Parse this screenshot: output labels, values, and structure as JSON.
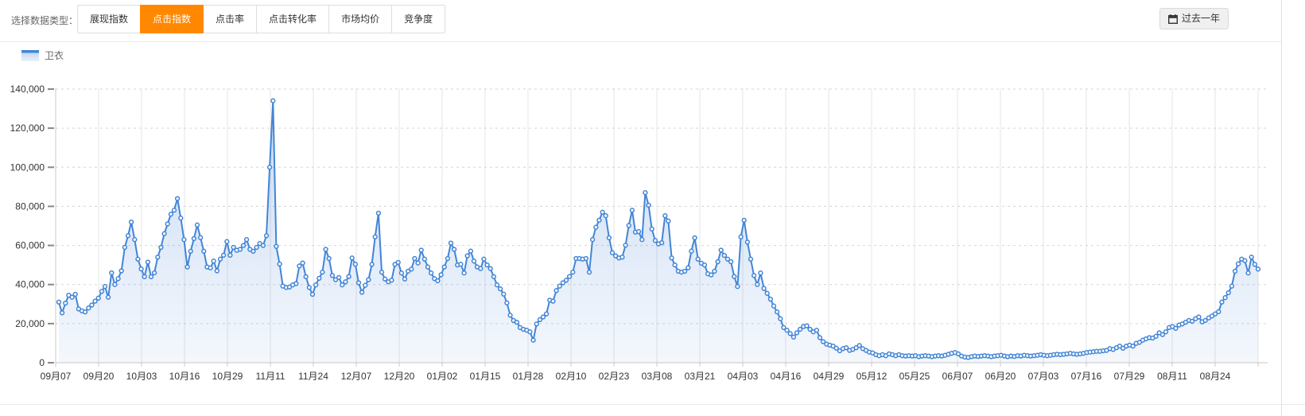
{
  "toolbar": {
    "label": "选择数据类型：",
    "tabs": [
      {
        "label": "展现指数",
        "active": false
      },
      {
        "label": "点击指数",
        "active": true
      },
      {
        "label": "点击率",
        "active": false
      },
      {
        "label": "点击转化率",
        "active": false
      },
      {
        "label": "市场均价",
        "active": false
      },
      {
        "label": "竞争度",
        "active": false
      }
    ],
    "range_button": {
      "label": "过去一年",
      "icon": "calendar-icon"
    }
  },
  "legend": {
    "items": [
      {
        "label": "卫衣",
        "color": "#4285d6"
      }
    ]
  },
  "colors": {
    "accent_orange": "#ff8800",
    "line_blue": "#4285d6",
    "area_top": "rgba(74,134,216,0.30)",
    "area_bottom": "rgba(74,134,216,0.06)",
    "grid_vertical": "#e4e4e4",
    "grid_dashed": "#d6d6d6",
    "axis": "#c9c9c9",
    "tick_text": "#333333"
  },
  "chart_data": {
    "type": "line",
    "title": "",
    "legend_position": "top-left",
    "grid": true,
    "area_fill": true,
    "marker": "hollow-circle",
    "ylim": [
      0,
      140000
    ],
    "y_tick_labels": [
      "0",
      "20,000",
      "40,000",
      "60,000",
      "80,000",
      "100,000",
      "120,000",
      "140,000"
    ],
    "x_tick_labels": [
      "09月07",
      "09月20",
      "10月03",
      "10月16",
      "10月29",
      "11月11",
      "11月24",
      "12月07",
      "12月20",
      "01月02",
      "01月15",
      "01月28",
      "02月10",
      "02月23",
      "03月08",
      "03月21",
      "04月03",
      "04月16",
      "04月29",
      "05月12",
      "05月25",
      "06月07",
      "06月20",
      "07月03",
      "07月16",
      "07月29",
      "08月11",
      "08月24"
    ],
    "points_per_x_tick": 13,
    "series": [
      {
        "name": "卫衣",
        "values": [
          31000,
          25500,
          30500,
          34500,
          33500,
          35000,
          27500,
          26500,
          26000,
          28000,
          29500,
          31500,
          33000,
          36500,
          39000,
          33500,
          46000,
          40000,
          43000,
          47000,
          59000,
          65000,
          72000,
          63000,
          53000,
          48000,
          44000,
          51500,
          44000,
          46000,
          54000,
          59000,
          66000,
          71000,
          76000,
          78000,
          84000,
          74000,
          63000,
          49000,
          57000,
          63500,
          70500,
          64000,
          57000,
          49000,
          48500,
          52000,
          47000,
          53000,
          55000,
          62000,
          55000,
          59000,
          57500,
          58000,
          60000,
          63000,
          58000,
          57000,
          59000,
          61000,
          60000,
          65000,
          100000,
          134000,
          59500,
          50500,
          39200,
          38500,
          38700,
          39800,
          40500,
          49500,
          51000,
          44000,
          38500,
          35000,
          39800,
          43200,
          46300,
          58000,
          53300,
          44600,
          42500,
          43600,
          39800,
          41400,
          44100,
          53600,
          50400,
          40900,
          36000,
          39600,
          42500,
          50300,
          64400,
          76500,
          46300,
          42800,
          41400,
          42200,
          50300,
          51300,
          45900,
          42800,
          46800,
          47900,
          53300,
          51000,
          57600,
          53000,
          49000,
          45900,
          43000,
          41900,
          45000,
          49000,
          53300,
          61200,
          58000,
          50000,
          50400,
          45900,
          54700,
          57100,
          52000,
          49000,
          48200,
          53000,
          50000,
          48200,
          44000,
          39800,
          37800,
          35100,
          30600,
          24300,
          21600,
          20700,
          18000,
          17100,
          16600,
          15800,
          11500,
          19800,
          22000,
          23400,
          25000,
          32000,
          31500,
          36900,
          39200,
          40900,
          42200,
          44100,
          46300,
          53300,
          53300,
          53000,
          53300,
          46300,
          63000,
          69300,
          72900,
          77000,
          75200,
          63900,
          56300,
          54700,
          53600,
          54000,
          60100,
          70200,
          78000,
          66800,
          67100,
          63000,
          87000,
          80600,
          68400,
          62500,
          60800,
          61400,
          75200,
          72500,
          53600,
          50000,
          46800,
          46300,
          46800,
          48600,
          57100,
          63900,
          53000,
          50900,
          50000,
          45500,
          44900,
          46800,
          51700,
          57600,
          54900,
          53000,
          51700,
          44100,
          39000,
          64400,
          72900,
          61700,
          53000,
          44600,
          40000,
          45900,
          38000,
          35500,
          32500,
          29000,
          26000,
          22500,
          18000,
          16600,
          14900,
          13100,
          15300,
          17100,
          18500,
          18900,
          17100,
          15800,
          16600,
          12800,
          10800,
          9500,
          9000,
          8500,
          7400,
          6100,
          7200,
          7700,
          6300,
          6800,
          7700,
          8800,
          7200,
          6300,
          5400,
          5000,
          4100,
          3600,
          4100,
          3600,
          4500,
          4100,
          3600,
          4100,
          3600,
          3400,
          3600,
          3400,
          3600,
          3100,
          3400,
          3600,
          3400,
          3100,
          3400,
          3600,
          3400,
          3800,
          4300,
          4800,
          5200,
          4500,
          3400,
          2900,
          2700,
          3100,
          3400,
          3200,
          3400,
          3600,
          3400,
          3100,
          3400,
          3600,
          3800,
          3400,
          3100,
          3400,
          3200,
          3600,
          3400,
          3800,
          3600,
          3400,
          3600,
          3800,
          4100,
          3800,
          3600,
          3800,
          4100,
          4300,
          4100,
          4300,
          4500,
          4800,
          4500,
          4300,
          4500,
          4800,
          5200,
          5400,
          5600,
          5800,
          5800,
          6100,
          6300,
          7200,
          6800,
          7700,
          8500,
          7400,
          8500,
          9000,
          8500,
          9900,
          10400,
          11500,
          12200,
          12800,
          12600,
          13500,
          15300,
          14400,
          15800,
          18000,
          18500,
          17600,
          19300,
          19800,
          20700,
          21600,
          21200,
          22500,
          23400,
          20900,
          21600,
          22900,
          23900,
          25000,
          26100,
          31000,
          33300,
          35800,
          39200,
          46800,
          50600,
          53000,
          52200,
          45900,
          54000,
          50300,
          47900
        ]
      }
    ]
  }
}
